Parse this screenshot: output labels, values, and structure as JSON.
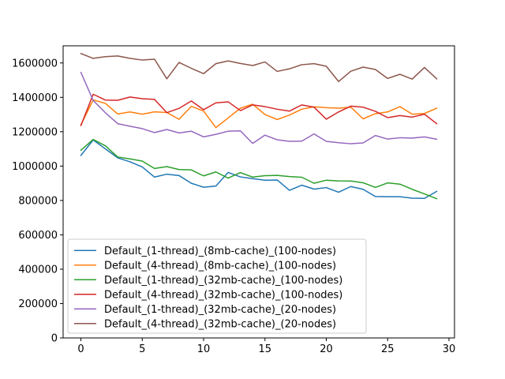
{
  "chart_data": {
    "type": "line",
    "title": "",
    "xlabel": "",
    "ylabel": "",
    "xlim": [
      -1.45,
      30.45
    ],
    "ylim": [
      0,
      1700000
    ],
    "xticks": [
      0,
      5,
      10,
      15,
      20,
      25,
      30
    ],
    "xtick_labels": [
      "0",
      "5",
      "10",
      "15",
      "20",
      "25",
      "30"
    ],
    "yticks": [
      0,
      200000,
      400000,
      600000,
      800000,
      1000000,
      1200000,
      1400000,
      1600000
    ],
    "ytick_labels": [
      "0",
      "200000",
      "400000",
      "600000",
      "800000",
      "1000000",
      "1200000",
      "1400000",
      "1600000"
    ],
    "grid": false,
    "legend_position": "lower-left",
    "x": [
      0,
      1,
      2,
      3,
      4,
      5,
      6,
      7,
      8,
      9,
      10,
      11,
      12,
      13,
      14,
      15,
      16,
      17,
      18,
      19,
      20,
      21,
      22,
      23,
      24,
      25,
      26,
      27,
      28,
      29
    ],
    "series": [
      {
        "name": "Default_(1-thread)_(8mb-cache)_(100-nodes)",
        "color": "#1f77b4",
        "values": [
          1062000,
          1152000,
          1100000,
          1048000,
          1025000,
          995000,
          936000,
          953000,
          945000,
          900000,
          877000,
          884000,
          963000,
          937000,
          927000,
          918000,
          919000,
          859000,
          889000,
          866000,
          875000,
          848000,
          881000,
          865000,
          823000,
          822000,
          822000,
          813000,
          812000,
          853000
        ]
      },
      {
        "name": "Default_(4-thread)_(8mb-cache)_(100-nodes)",
        "color": "#ff7f0e",
        "values": [
          1240000,
          1385000,
          1365000,
          1303000,
          1315000,
          1302000,
          1316000,
          1312000,
          1272000,
          1348000,
          1320000,
          1224000,
          1280000,
          1337000,
          1360000,
          1300000,
          1271000,
          1297000,
          1331000,
          1345000,
          1340000,
          1337000,
          1343000,
          1275000,
          1305000,
          1315000,
          1346000,
          1302000,
          1306000,
          1337000
        ]
      },
      {
        "name": "Default_(1-thread)_(32mb-cache)_(100-nodes)",
        "color": "#2ca02c",
        "values": [
          1092000,
          1155000,
          1118000,
          1053000,
          1042000,
          1029000,
          986000,
          997000,
          980000,
          978000,
          943000,
          966000,
          930000,
          962000,
          936000,
          944000,
          946000,
          939000,
          935000,
          900000,
          918000,
          914000,
          913000,
          903000,
          876000,
          902000,
          895000,
          865000,
          838000,
          810000
        ]
      },
      {
        "name": "Default_(4-thread)_(32mb-cache)_(100-nodes)",
        "color": "#d62728",
        "values": [
          1236000,
          1418000,
          1384000,
          1383000,
          1402000,
          1392000,
          1388000,
          1311000,
          1336000,
          1379000,
          1328000,
          1368000,
          1374000,
          1323000,
          1356000,
          1346000,
          1331000,
          1320000,
          1356000,
          1343000,
          1273000,
          1315000,
          1349000,
          1343000,
          1319000,
          1282000,
          1294000,
          1285000,
          1302000,
          1247000
        ]
      },
      {
        "name": "Default_(1-thread)_(32mb-cache)_(20-nodes)",
        "color": "#9467bd",
        "values": [
          1545000,
          1382000,
          1310000,
          1247000,
          1232000,
          1218000,
          1195000,
          1213000,
          1193000,
          1203000,
          1170000,
          1185000,
          1203000,
          1205000,
          1132000,
          1180000,
          1153000,
          1144000,
          1145000,
          1187000,
          1144000,
          1136000,
          1130000,
          1135000,
          1178000,
          1157000,
          1165000,
          1163000,
          1170000,
          1156000
        ]
      },
      {
        "name": "Default_(4-thread)_(32mb-cache)_(20-nodes)",
        "color": "#8c564b",
        "values": [
          1655000,
          1627000,
          1637000,
          1641000,
          1627000,
          1617000,
          1622000,
          1508000,
          1603000,
          1569000,
          1538000,
          1596000,
          1612000,
          1597000,
          1585000,
          1606000,
          1551000,
          1566000,
          1590000,
          1596000,
          1581000,
          1492000,
          1552000,
          1576000,
          1562000,
          1510000,
          1534000,
          1506000,
          1574000,
          1508000
        ]
      }
    ]
  }
}
